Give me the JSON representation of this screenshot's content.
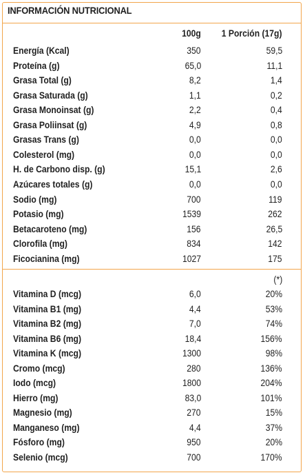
{
  "title": "INFORMACIÓN NUTRICIONAL",
  "colors": {
    "accent": "#f2a54a",
    "text": "#1f1f1f",
    "background": "#ffffff"
  },
  "header": {
    "col1": "100g",
    "col2": "1 Porción (17g)"
  },
  "macros": [
    {
      "label": "Energía (Kcal)",
      "v100": "350",
      "vport": "59,5"
    },
    {
      "label": "Proteína (g)",
      "v100": "65,0",
      "vport": "11,1"
    },
    {
      "label": "Grasa Total (g)",
      "v100": "8,2",
      "vport": "1,4"
    },
    {
      "label": "Grasa Saturada (g)",
      "v100": "1,1",
      "vport": "0,2"
    },
    {
      "label": "Grasa Monoinsat (g)",
      "v100": "2,2",
      "vport": "0,4"
    },
    {
      "label": "Grasa Poliinsat (g)",
      "v100": "4,9",
      "vport": "0,8"
    },
    {
      "label": "Grasas Trans (g)",
      "v100": "0,0",
      "vport": "0,0"
    },
    {
      "label": "Colesterol (mg)",
      "v100": "0,0",
      "vport": "0,0"
    },
    {
      "label": "H. de Carbono disp. (g)",
      "v100": "15,1",
      "vport": "2,6"
    },
    {
      "label": "Azúcares totales (g)",
      "v100": "0,0",
      "vport": "0,0"
    },
    {
      "label": "Sodio (mg)",
      "v100": "700",
      "vport": "119"
    },
    {
      "label": "Potasio (mg)",
      "v100": "1539",
      "vport": "262"
    },
    {
      "label": "Betacaroteno (mg)",
      "v100": "156",
      "vport": "26,5"
    },
    {
      "label": "Clorofila (mg)",
      "v100": "834",
      "vport": "142"
    },
    {
      "label": "Ficocianina (mg)",
      "v100": "1027",
      "vport": "175"
    }
  ],
  "micro_note": "(*)",
  "micros": [
    {
      "label": "Vitamina D (mcg)",
      "v100": "6,0",
      "vport": "20%"
    },
    {
      "label": "Vitamina B1 (mg)",
      "v100": "4,4",
      "vport": "53%"
    },
    {
      "label": "Vitamina B2 (mg)",
      "v100": "7,0",
      "vport": "74%"
    },
    {
      "label": "Vitamina B6 (mg)",
      "v100": "18,4",
      "vport": "156%"
    },
    {
      "label": "Vitamina K (mcg)",
      "v100": "1300",
      "vport": "98%"
    },
    {
      "label": "Cromo (mcg)",
      "v100": "280",
      "vport": "136%"
    },
    {
      "label": "Iodo (mcg)",
      "v100": "1800",
      "vport": "204%"
    },
    {
      "label": "Hierro (mg)",
      "v100": "83,0",
      "vport": "101%"
    },
    {
      "label": "Magnesio (mg)",
      "v100": "270",
      "vport": "15%"
    },
    {
      "label": "Manganeso (mg)",
      "v100": "4,4",
      "vport": "37%"
    },
    {
      "label": "Fósforo (mg)",
      "v100": "950",
      "vport": "20%"
    },
    {
      "label": "Selenio (mcg)",
      "v100": "700",
      "vport": "170%"
    }
  ]
}
